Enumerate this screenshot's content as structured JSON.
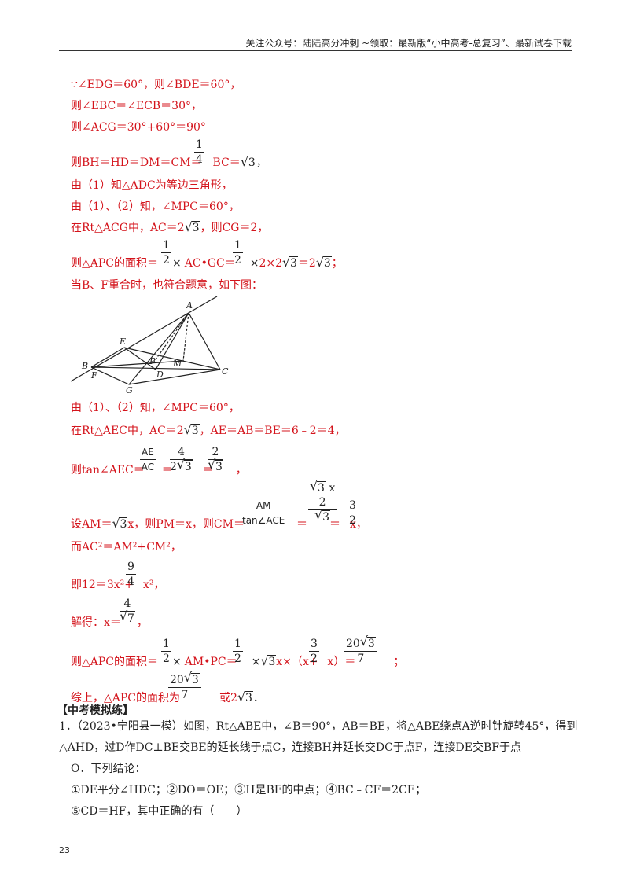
{
  "header": {
    "text": "关注公众号：陆陆高分冲刺  ~领取：最新版“小中高考-总复习”、最新试卷下载"
  },
  "solution": {
    "l1": "∵∠EDG＝60°，则∠BDE＝60°，",
    "l2": "则∠EBC＝∠ECB＝30°，",
    "l3": "则∠ACG＝30°+60°＝90°",
    "l4a": "则BH＝HD＝DM＝CM＝",
    "l4b": "BC＝",
    "l5": "由（1）知△ADC为等边三角形，",
    "l6": "由（1）、（2）知，∠MPC＝60°，",
    "l7a": "在Rt△ACG中，AC＝2",
    "l7b": "，则CG＝2，",
    "l8a": "则△APC的面积＝",
    "l8b": "AC•GC＝",
    "l8c": "2×2",
    "l8d": "＝2",
    "l8e": "；",
    "l9": "当B、F重合时，也符合题意，如下图：",
    "l10": "由（1）、（2）知，∠MPC＝60°，",
    "l11a": "在Rt△AEC中，AC＝2",
    "l11b": "，AE＝AB＝BE＝6﹣2＝4，",
    "l12a": "则tan∠AEC＝",
    "l12b": "＝",
    "l12c": "＝",
    "l12d": "，",
    "l13a": "设AM＝",
    "l13b": "x，则PM＝x，则CM＝",
    "l13c": "＝",
    "l13d": "＝",
    "l13e": "x，",
    "l14": "而AC²＝AM²+CM²，",
    "l15a": "即12＝3x²+",
    "l15b": "x²，",
    "l16a": "解得：x＝",
    "l16b": "，",
    "l17a": "则△APC的面积＝",
    "l17b": "AM•PC＝",
    "l17c": "x×（x+",
    "l17d": "x）＝",
    "l17e": "；",
    "l18a": "综上，△APC的面积为",
    "l18b": "或2",
    "l18c": "．"
  },
  "math": {
    "one": "1",
    "two": "2",
    "three": "3",
    "four": "4",
    "seven": "7",
    "nine": "9",
    "sqrt3": "3",
    "sqrt7": "7",
    "twenty": "20",
    "AE": "AE",
    "AC": "AC",
    "AM": "AM",
    "tanACE": "tan∠ACE",
    "x": "x",
    "mul": "×"
  },
  "figure": {
    "labels": {
      "A": "A",
      "E": "E",
      "B": "B",
      "F": "F",
      "P": "P",
      "M": "M",
      "D": "D",
      "C": "C",
      "G": "G"
    }
  },
  "section": {
    "title": "【中考模拟练】"
  },
  "question": {
    "l1": "1．（2023•宁阳县一模）如图，Rt△ABE中，∠B＝90°，AB＝BE，将△ABE绕点A逆时针旋转45°，得到",
    "l2": "△AHD，过D作DC⊥BE交BE的延长线于点C，连接BH并延长交DC于点F，连接DE交BF于点",
    "l3": "O．下列结论：",
    "l4": "①DE平分∠HDC；②DO＝OE；③H是BF的中点；④BC﹣CF＝2CE；",
    "l5": "⑤CD＝HF，其中正确的有（　　）"
  },
  "page": {
    "number": "23"
  }
}
